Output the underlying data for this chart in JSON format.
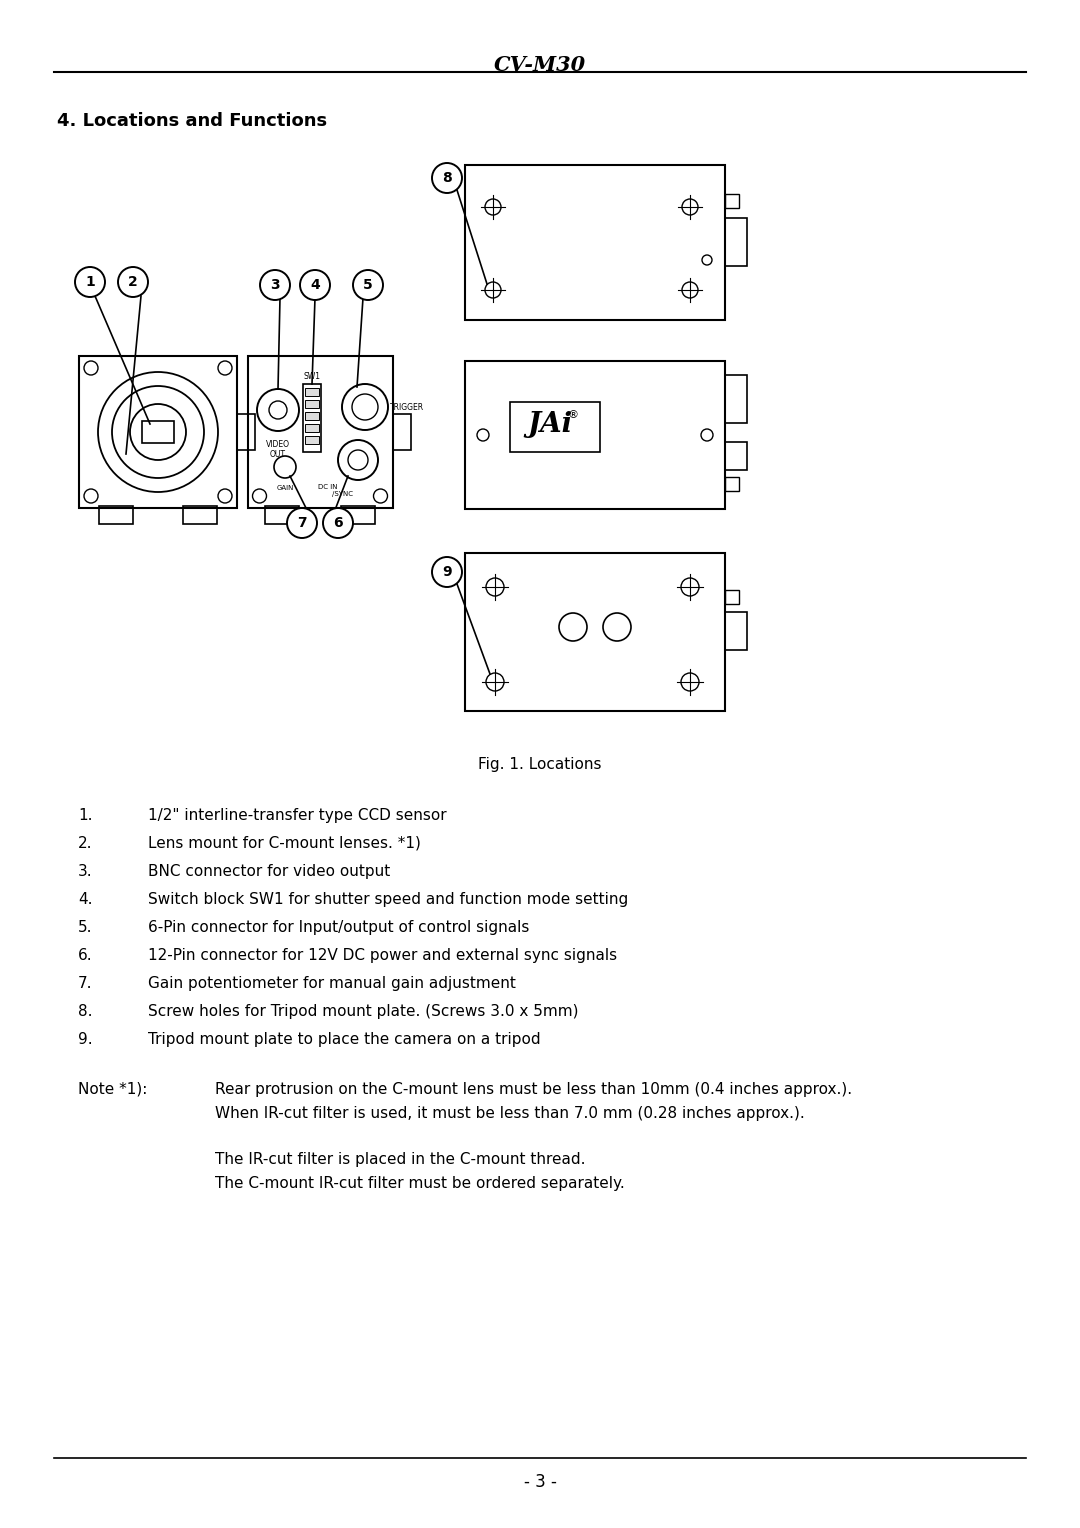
{
  "title": "CV-M30",
  "section_title": "4. Locations and Functions",
  "fig_caption": "Fig. 1. Locations",
  "page_number": "- 3 -",
  "list_items": [
    "1/2\" interline-transfer type CCD sensor",
    "Lens mount for C-mount lenses. *1)",
    "BNC connector for video output",
    "Switch block SW1 for shutter speed and function mode setting",
    "6-Pin connector for Input/output of control signals",
    "12-Pin connector for 12V DC power and external sync signals",
    "Gain potentiometer for manual gain adjustment",
    "Screw holes for Tripod mount plate. (Screws 3.0 x 5mm)",
    "Tripod mount plate to place the camera on a tripod"
  ],
  "note_label": "Note *1):",
  "note_text1": "Rear protrusion on the C-mount lens must be less than 10mm (0.4 inches approx.).",
  "note_text2": "When IR-cut filter is used, it must be less than 7.0 mm (0.28 inches approx.).",
  "note_text3": "The IR-cut filter is placed in the C-mount thread.",
  "note_text4": "The C-mount IR-cut filter must be ordered separately.",
  "bg_color": "#ffffff",
  "text_color": "#000000"
}
